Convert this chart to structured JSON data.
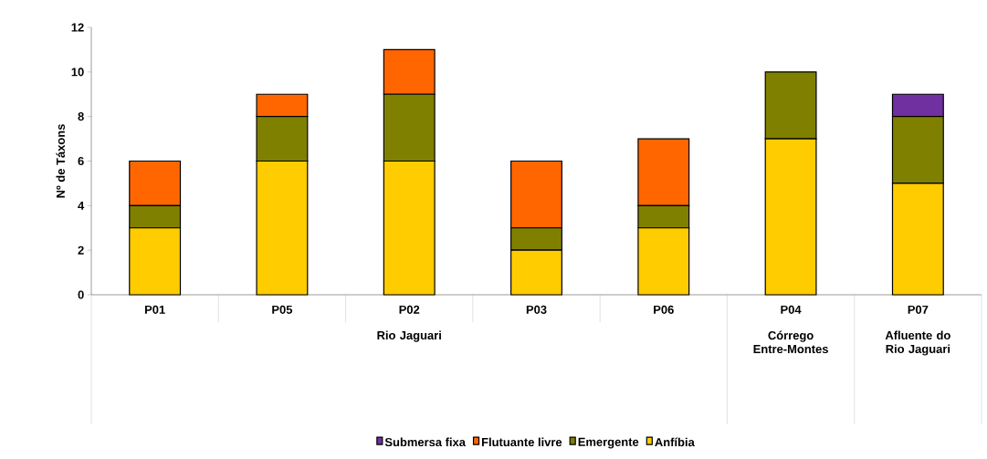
{
  "chart_data": {
    "type": "bar",
    "stacked": true,
    "ylabel": "Nº de Táxons",
    "categories": [
      "P01",
      "P05",
      "P02",
      "P03",
      "P06",
      "P04",
      "P07"
    ],
    "series": [
      {
        "name": "Anfíbia",
        "color": "#ffcc00",
        "values": [
          3,
          6,
          6,
          2,
          3,
          7,
          5
        ]
      },
      {
        "name": "Emergente",
        "color": "#808000",
        "values": [
          1,
          2,
          3,
          1,
          1,
          3,
          3
        ]
      },
      {
        "name": "Flutuante livre",
        "color": "#ff6600",
        "values": [
          2,
          1,
          2,
          3,
          3,
          0,
          0
        ]
      },
      {
        "name": "Submersa fixa",
        "color": "#7030a0",
        "values": [
          0,
          0,
          0,
          0,
          0,
          0,
          1
        ]
      }
    ],
    "ylim": [
      0,
      12
    ],
    "yticks": [
      0,
      2,
      4,
      6,
      8,
      10,
      12
    ],
    "legend": "bottom",
    "annotations": [
      "Rio Jaguari",
      "Córrego Entre-Montes",
      "Afluente do Rio Jaguari"
    ]
  }
}
